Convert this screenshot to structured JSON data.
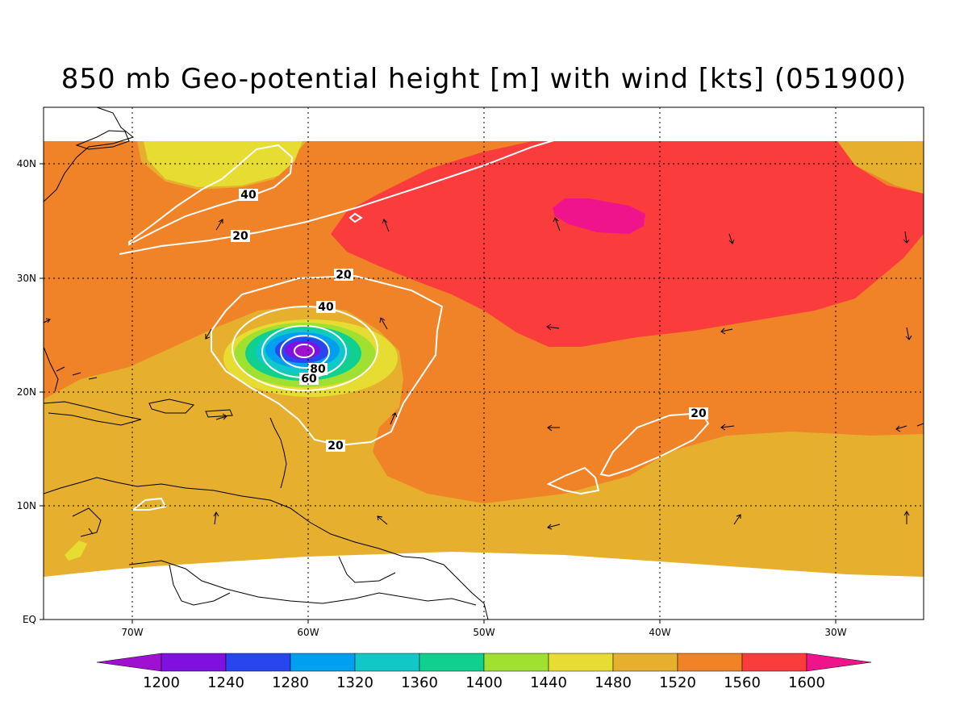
{
  "title": "850 mb Geo-potential height [m] with wind [kts] (051900)",
  "axes": {
    "lon_labels": [
      "70W",
      "60W",
      "50W",
      "40W",
      "30W"
    ],
    "lat_labels": [
      "40N",
      "30N",
      "20N",
      "10N",
      "EQ"
    ]
  },
  "colorbar": {
    "labels": [
      "1200",
      "1240",
      "1280",
      "1320",
      "1360",
      "1400",
      "1440",
      "1480",
      "1520",
      "1560",
      "1600"
    ],
    "colors": [
      "#a010d0",
      "#8010e0",
      "#2846f0",
      "#00a0f0",
      "#10c8c8",
      "#10d090",
      "#a0e030",
      "#e6dc32",
      "#e6af2d",
      "#f08228",
      "#fa3c3c",
      "#f0148c"
    ]
  },
  "contour_labels": {
    "c1": "40",
    "c2": "20",
    "c3": "20",
    "c4": "40",
    "c5": "80",
    "c6": "60",
    "c7": "20",
    "c8": "20"
  },
  "chart_data": {
    "type": "heatmap",
    "title": "850 mb Geo-potential height [m] with wind [kts] (051900)",
    "x_range": [
      "75W",
      "25W"
    ],
    "y_range": [
      "0",
      "45N"
    ],
    "shading_levels_m": [
      1200,
      1240,
      1280,
      1320,
      1360,
      1400,
      1440,
      1480,
      1520,
      1560,
      1600
    ],
    "wind_contour_levels_kts": [
      20,
      40,
      60,
      80
    ],
    "grid": true
  }
}
